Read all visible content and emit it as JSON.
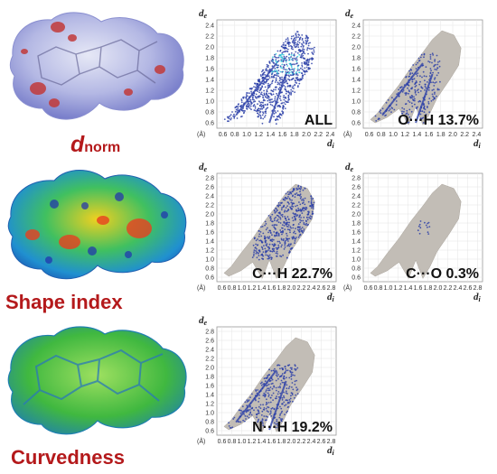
{
  "surfaces": [
    {
      "id": "dnorm",
      "label_main": "d",
      "label_sub": "norm"
    },
    {
      "id": "shape",
      "label": "Shape index"
    },
    {
      "id": "curv",
      "label": "Curvedness"
    }
  ],
  "plot_axes": {
    "y_var": "d",
    "y_sub": "e",
    "x_var": "d",
    "x_sub": "i",
    "x_unit": "(Å)",
    "y_unit": "(Å)",
    "y_ticks": [
      "2.4",
      "2.2",
      "2.0",
      "1.8",
      "1.6",
      "1.4",
      "1.2",
      "1.0",
      "0.8",
      "0.6"
    ],
    "y_ticks_ext": [
      "2.8",
      "2.6",
      "2.4",
      "2.2",
      "2.0",
      "1.8",
      "1.6",
      "1.4",
      "1.2",
      "1.0",
      "0.8",
      "0.6"
    ],
    "x_ticks": [
      "0.6",
      "0.8",
      "1.0",
      "1.2",
      "1.4",
      "1.6",
      "1.8",
      "2.0",
      "2.2",
      "2.4"
    ],
    "x_ticks_ext": [
      "0.6",
      "0.8",
      "1.0",
      "1.2",
      "1.4",
      "1.6",
      "1.8",
      "2.0",
      "2.2",
      "2.4",
      "2.6",
      "2.8"
    ]
  },
  "plots": [
    {
      "id": "all",
      "label": "ALL",
      "range": "short"
    },
    {
      "id": "oh",
      "label": "O···H 13.7%",
      "range": "short"
    },
    {
      "id": "ch",
      "label": "C···H 22.7%",
      "range": "ext"
    },
    {
      "id": "co",
      "label": "C···O 0.3%",
      "range": "ext"
    },
    {
      "id": "nh",
      "label": "N···H 19.2%",
      "range": "ext"
    }
  ]
}
